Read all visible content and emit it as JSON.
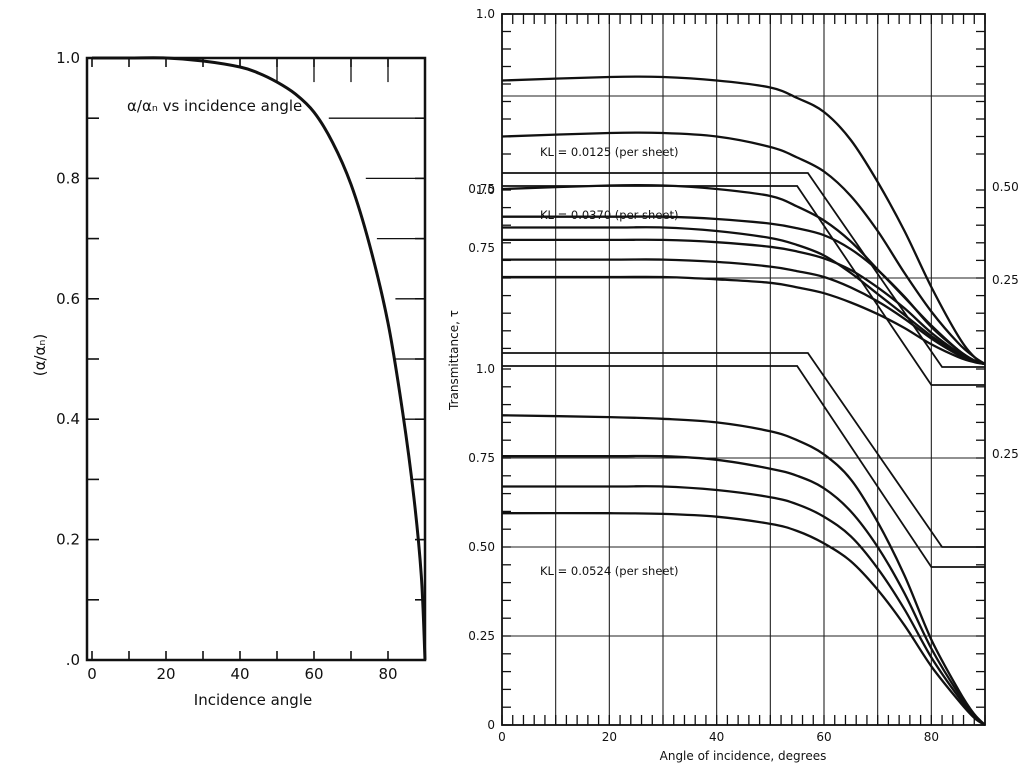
{
  "chart_data": [
    {
      "type": "line",
      "annotation": "α/αₙ vs incidence angle",
      "xlabel": "Incidence angle",
      "ylabel": "(α/αₙ)",
      "xlim": [
        0,
        90
      ],
      "ylim": [
        0,
        1.0
      ],
      "x_ticks": [
        "0",
        "20",
        "40",
        "60",
        "80"
      ],
      "y_ticks": [
        ".0",
        "0.2",
        "0.4",
        "0.6",
        "0.8",
        "1.0"
      ],
      "grid": "partial (upper-right region)",
      "series": [
        {
          "x": [
            0,
            10,
            20,
            30,
            40,
            45,
            50,
            55,
            60,
            65,
            70,
            75,
            80,
            84,
            87,
            89,
            90
          ],
          "values": [
            1.0,
            1.0,
            1.0,
            0.995,
            0.985,
            0.975,
            0.96,
            0.94,
            0.91,
            0.86,
            0.79,
            0.69,
            0.56,
            0.41,
            0.27,
            0.14,
            0.0
          ]
        }
      ]
    },
    {
      "type": "line",
      "xlabel": "Angle of incidence, degrees",
      "ylabel": "Transmittance, τ",
      "xlim": [
        0,
        90
      ],
      "x_ticks": [
        "0",
        "20",
        "40",
        "60",
        "80"
      ],
      "panels": [
        {
          "label": "KL = 0.0125 (per sheet)",
          "ylim": [
            0.5,
            1.0
          ],
          "y_ticks": [
            "1.0",
            "0.75"
          ],
          "right_label": "0.50",
          "series": [
            {
              "x": [
                0,
                20,
                30,
                40,
                50,
                55,
                60,
                65,
                70,
                75,
                80,
                85,
                88,
                90
              ],
              "values": [
                0.905,
                0.91,
                0.91,
                0.905,
                0.895,
                0.88,
                0.86,
                0.82,
                0.76,
                0.69,
                0.61,
                0.54,
                0.51,
                0.5
              ]
            },
            {
              "x": [
                0,
                20,
                30,
                40,
                50,
                55,
                60,
                65,
                70,
                75,
                80,
                85,
                88,
                90
              ],
              "values": [
                0.825,
                0.83,
                0.83,
                0.825,
                0.81,
                0.795,
                0.775,
                0.74,
                0.69,
                0.63,
                0.575,
                0.53,
                0.51,
                0.5
              ]
            },
            {
              "x": [
                0,
                20,
                30,
                40,
                50,
                55,
                60,
                65,
                70,
                75,
                80,
                85,
                88,
                90
              ],
              "values": [
                0.75,
                0.755,
                0.755,
                0.75,
                0.74,
                0.725,
                0.705,
                0.675,
                0.635,
                0.595,
                0.555,
                0.52,
                0.505,
                0.5
              ]
            },
            {
              "x": [
                0,
                20,
                30,
                40,
                50,
                55,
                60,
                65,
                70,
                75,
                80,
                85,
                88,
                90
              ],
              "values": [
                0.695,
                0.695,
                0.695,
                0.69,
                0.68,
                0.67,
                0.655,
                0.63,
                0.6,
                0.57,
                0.54,
                0.515,
                0.505,
                0.5
              ]
            }
          ]
        },
        {
          "label": "KL = 0.0370 (per sheet)",
          "ylim": [
            0.25,
            1.0
          ],
          "y_ticks": [
            "1.0",
            "0.75"
          ],
          "right_label": "0.25",
          "series": [
            {
              "x": [
                0,
                20,
                30,
                40,
                50,
                55,
                60,
                65,
                70,
                75,
                80,
                85,
                88,
                90
              ],
              "values": [
                0.885,
                0.885,
                0.885,
                0.875,
                0.855,
                0.835,
                0.805,
                0.745,
                0.655,
                0.54,
                0.41,
                0.31,
                0.265,
                0.25
              ]
            },
            {
              "x": [
                0,
                20,
                30,
                40,
                50,
                55,
                60,
                65,
                70,
                75,
                80,
                85,
                88,
                90
              ],
              "values": [
                0.785,
                0.785,
                0.785,
                0.775,
                0.755,
                0.735,
                0.705,
                0.655,
                0.58,
                0.49,
                0.385,
                0.3,
                0.262,
                0.25
              ]
            },
            {
              "x": [
                0,
                20,
                30,
                40,
                50,
                55,
                60,
                65,
                70,
                75,
                80,
                85,
                88,
                90
              ],
              "values": [
                0.7,
                0.7,
                0.7,
                0.69,
                0.67,
                0.65,
                0.625,
                0.58,
                0.52,
                0.445,
                0.36,
                0.29,
                0.26,
                0.25
              ]
            },
            {
              "x": [
                0,
                20,
                30,
                40,
                50,
                55,
                60,
                65,
                70,
                75,
                80,
                85,
                88,
                90
              ],
              "values": [
                0.625,
                0.625,
                0.625,
                0.615,
                0.6,
                0.58,
                0.555,
                0.515,
                0.465,
                0.405,
                0.335,
                0.28,
                0.258,
                0.25
              ]
            }
          ]
        },
        {
          "label": "KL = 0.0524 (per sheet)",
          "ylim": [
            0,
            1.0
          ],
          "y_ticks": [
            "1.0",
            "0.75",
            "0.50",
            "0.25",
            "0"
          ],
          "right_label": "0.25",
          "series": [
            {
              "x": [
                0,
                20,
                30,
                40,
                50,
                55,
                60,
                65,
                70,
                75,
                80,
                85,
                88,
                90
              ],
              "values": [
                0.87,
                0.865,
                0.86,
                0.85,
                0.825,
                0.8,
                0.76,
                0.69,
                0.57,
                0.42,
                0.24,
                0.1,
                0.03,
                0.0
              ]
            },
            {
              "x": [
                0,
                20,
                30,
                40,
                50,
                55,
                60,
                65,
                70,
                75,
                80,
                85,
                88,
                90
              ],
              "values": [
                0.755,
                0.755,
                0.755,
                0.745,
                0.72,
                0.7,
                0.665,
                0.6,
                0.5,
                0.37,
                0.215,
                0.09,
                0.03,
                0.0
              ]
            },
            {
              "x": [
                0,
                20,
                30,
                40,
                50,
                55,
                60,
                65,
                70,
                75,
                80,
                85,
                88,
                90
              ],
              "values": [
                0.67,
                0.67,
                0.67,
                0.66,
                0.64,
                0.62,
                0.585,
                0.53,
                0.44,
                0.325,
                0.19,
                0.08,
                0.025,
                0.0
              ]
            },
            {
              "x": [
                0,
                20,
                30,
                40,
                50,
                55,
                60,
                65,
                70,
                75,
                80,
                85,
                88,
                90
              ],
              "values": [
                0.595,
                0.595,
                0.593,
                0.585,
                0.565,
                0.545,
                0.51,
                0.46,
                0.38,
                0.28,
                0.165,
                0.07,
                0.02,
                0.0
              ]
            }
          ]
        }
      ]
    }
  ]
}
